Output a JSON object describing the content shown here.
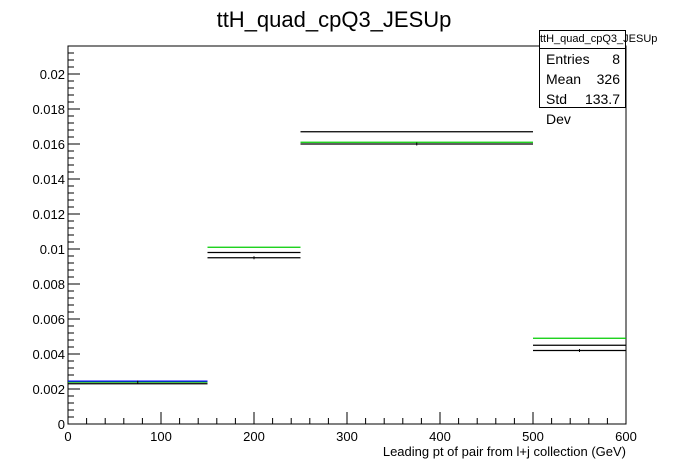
{
  "chart_data": {
    "type": "histogram",
    "title": "ttH_quad_cpQ3_JESUp",
    "xlabel": "Leading pt of pair from l+j collection (GeV)",
    "ylabel": "",
    "xlim": [
      0,
      600
    ],
    "ylim": [
      0,
      0.0216
    ],
    "x_ticks": [
      0,
      100,
      200,
      300,
      400,
      500,
      600
    ],
    "y_ticks": [
      "0",
      "0.002",
      "0.004",
      "0.006",
      "0.008",
      "0.01",
      "0.012",
      "0.014",
      "0.016",
      "0.018",
      "0.02"
    ],
    "bin_edges": [
      0,
      150,
      250,
      500,
      600
    ],
    "series": [
      {
        "color": "#000000",
        "values": [
          0.0024,
          0.0095,
          0.016,
          0.0042
        ]
      },
      {
        "color": "#000000",
        "values": [
          0.0023,
          0.0098,
          0.0167,
          0.0045
        ]
      },
      {
        "color": "#00cc00",
        "values": [
          0.0024,
          0.0101,
          0.0161,
          0.0049
        ]
      },
      {
        "color": "#0000ff",
        "values": [
          0.00245,
          null,
          null,
          null
        ]
      }
    ],
    "stats": {
      "name": "ttH_quad_cpQ3_JESUp",
      "rows": [
        {
          "label": "Entries",
          "value": "8"
        },
        {
          "label": "Mean",
          "value": "326"
        },
        {
          "label": "Std Dev",
          "value": "133.7"
        }
      ]
    }
  }
}
